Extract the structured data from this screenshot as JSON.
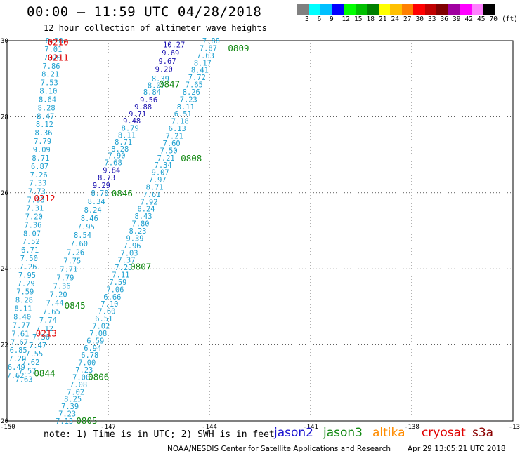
{
  "header": {
    "title": "00:00 – 11:59 UTC 04/28/2018",
    "subtitle": "12 hour collection of altimeter wave heights"
  },
  "legend": {
    "colors": [
      "#808080",
      "#00ffff",
      "#00c0ff",
      "#0000ff",
      "#00ff00",
      "#00c000",
      "#008000",
      "#ffff00",
      "#ffc000",
      "#ff8000",
      "#ff0000",
      "#c00000",
      "#800000",
      "#a000a0",
      "#ff00ff",
      "#ff80ff",
      "#000000"
    ],
    "labels": [
      "3",
      "6",
      "9",
      "12",
      "15",
      "18",
      "21",
      "24",
      "27",
      "30",
      "33",
      "36",
      "39",
      "42",
      "45",
      "70",
      "(ft)"
    ]
  },
  "axes": {
    "lon_ticks": [
      "-150",
      "-147",
      "-144",
      "-141",
      "-138",
      "-13"
    ],
    "lat_ticks": [
      "30",
      "28",
      "26",
      "24",
      "22",
      "20"
    ]
  },
  "colors": {
    "cyan": "#1ea0d0",
    "blue": "#1a12b0",
    "green": "#118811",
    "red": "#e00000",
    "orange": "#ff8c00"
  },
  "passes": [
    {
      "label": "0210",
      "color": "red",
      "lat": 29.95,
      "lon": -148.8
    },
    {
      "label": "0211",
      "color": "red",
      "lat": 29.55,
      "lon": -148.8
    },
    {
      "label": "0212",
      "color": "red",
      "lat": 25.85,
      "lon": -149.2
    },
    {
      "label": "0213",
      "color": "red",
      "lat": 22.3,
      "lon": -149.15
    },
    {
      "label": "0809",
      "color": "green",
      "lat": 29.8,
      "lon": -143.45
    },
    {
      "label": "0808",
      "color": "green",
      "lat": 26.9,
      "lon": -144.85
    },
    {
      "label": "0807",
      "color": "green",
      "lat": 24.05,
      "lon": -146.35
    },
    {
      "label": "0806",
      "color": "green",
      "lat": 21.15,
      "lon": -147.6
    },
    {
      "label": "0805",
      "color": "green",
      "lat": 20.0,
      "lon": -147.95
    },
    {
      "label": "0847",
      "color": "green",
      "lat": 28.85,
      "lon": -145.5
    },
    {
      "label": "0846",
      "color": "green",
      "lat": 25.98,
      "lon": -146.9
    },
    {
      "label": "0845",
      "color": "green",
      "lat": 23.03,
      "lon": -148.3
    },
    {
      "label": "0844",
      "color": "green",
      "lat": 21.25,
      "lon": -149.2
    }
  ],
  "observations": [
    {
      "group": "west",
      "color": "cyan",
      "values": [
        "8.28",
        "7.01",
        "7.20",
        "7.86",
        "8.21",
        "7.53",
        "8.10",
        "8.64",
        "8.28",
        "8.47",
        "8.12",
        "8.36",
        "7.79",
        "9.09",
        "8.71",
        "6.87",
        "7.26",
        "7.33",
        "7.73",
        "7.88",
        "7.31",
        "7.20",
        "7.36",
        "8.07",
        "7.52",
        "6.71",
        "7.50",
        "7.26",
        "7.95",
        "7.29",
        "7.59",
        "8.28",
        "8.11",
        "8.40",
        "7.77",
        "7.61",
        "7.67",
        "6.85",
        "7.20",
        "6.49",
        "7.62"
      ]
    },
    {
      "group": "middle_top",
      "color": "blue",
      "values": [
        "10.27",
        "9.69",
        "9.67",
        "9.20"
      ]
    },
    {
      "group": "middle_upper",
      "color": "cyan",
      "values": [
        "8.39",
        "8.07",
        "8.84"
      ]
    },
    {
      "group": "middle_blue2",
      "color": "blue",
      "values": [
        "9.56",
        "9.88",
        "9.71",
        "9.48"
      ]
    },
    {
      "group": "middle_mid",
      "color": "cyan",
      "values": [
        "8.79",
        "8.11",
        "8.71",
        "8.28",
        "7.90",
        "7.68"
      ]
    },
    {
      "group": "middle_blue3",
      "color": "blue",
      "values": [
        "9.84",
        "8.73",
        "9.29"
      ]
    },
    {
      "group": "middle_low",
      "color": "cyan",
      "values": [
        "8.70",
        "8.34",
        "8.24",
        "8.46",
        "7.95",
        "8.54",
        "7.60",
        "7.26",
        "7.75",
        "7.71",
        "7.79",
        "7.36",
        "7.20",
        "7.44",
        "7.65",
        "7.74",
        "7.12",
        "7.36",
        "7.47",
        "7.55",
        "7.62",
        "7.57",
        "7.63"
      ]
    },
    {
      "group": "east",
      "color": "cyan",
      "values": [
        "7.88",
        "7.87",
        "7.63",
        "8.17",
        "8.41",
        "7.72",
        "7.65",
        "8.26",
        "7.23",
        "8.11",
        "6.51",
        "7.18",
        "6.13",
        "7.21",
        "7.60",
        "7.50",
        "7.21",
        "7.34",
        "9.07",
        "7.97",
        "8.71",
        "7.61",
        "7.92",
        "8.24",
        "8.43",
        "7.80",
        "8.23",
        "9.39",
        "7.96",
        "7.03",
        "7.37",
        "7.23",
        "7.11",
        "7.59",
        "7.06",
        "6.66",
        "7.10",
        "7.60",
        "6.51",
        "7.02",
        "7.08",
        "6.59",
        "6.94",
        "6.78",
        "7.00",
        "7.23",
        "7.00",
        "7.08",
        "7.02",
        "8.25",
        "7.39",
        "7.23",
        "7.13"
      ]
    }
  ],
  "footer": {
    "note": "note: 1) Time is in UTC; 2) SWH is in feet",
    "satellites": [
      {
        "name": "jason2",
        "color": "#1a12d0"
      },
      {
        "name": "jason3",
        "color": "#118811"
      },
      {
        "name": "altika",
        "color": "#ff8c00"
      },
      {
        "name": "cryosat",
        "color": "#e00000"
      },
      {
        "name": "s3a",
        "color": "#8b0000"
      }
    ],
    "credit": "NOAA/NESDIS Center for Satellite Applications and Research",
    "timestamp": "Apr 29 13:05:21 UTC 2018"
  }
}
